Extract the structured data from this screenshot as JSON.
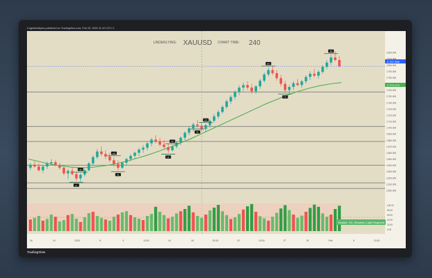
{
  "header": {
    "publisher": "CognitiveAlpha published on TradingView.com, Feb 02, 2025 21:42 UTC+1"
  },
  "toolbar": {
    "badge": "USD"
  },
  "footer": {
    "brand": "TradingView"
  },
  "chart_data": {
    "type": "candlestick",
    "underlying_label": "UNDERLYING:",
    "symbol": "XAUUSD",
    "chart_time_label": "CHART TIME:",
    "timeframe": "240",
    "ylim": [
      2590,
      2830
    ],
    "price_ticks": [
      "2,820.000",
      "2,810.000",
      "2,800.000",
      "2,790.000",
      "2,780.000",
      "2,770.000",
      "2,760.000",
      "2,750.000",
      "2,740.000",
      "2,730.000",
      "2,720.000",
      "2,710.000",
      "2,700.000",
      "2,690.000",
      "2,680.000",
      "2,670.000",
      "2,660.000",
      "2,650.000",
      "2,640.000",
      "2,630.000",
      "2,620.000",
      "2,610.000",
      "2,600.000"
    ],
    "last_price_label": "2,797.985",
    "ma_price_label": "2,772.373",
    "x_ticks": [
      "16",
      "19",
      "2025",
      "6",
      "9",
      "13:00",
      "14",
      "16",
      "20:00",
      "22",
      "13:00",
      "27",
      "30",
      "Feb",
      "5",
      "13:00"
    ],
    "horizontal_levels": [
      2757,
      2702,
      2678,
      2640,
      2612,
      2603
    ],
    "candles": [
      [
        2636,
        2644,
        2632,
        2641
      ],
      [
        2641,
        2647,
        2636,
        2638
      ],
      [
        2638,
        2643,
        2630,
        2632
      ],
      [
        2632,
        2640,
        2628,
        2638
      ],
      [
        2638,
        2646,
        2634,
        2643
      ],
      [
        2643,
        2650,
        2640,
        2645
      ],
      [
        2645,
        2648,
        2638,
        2640
      ],
      [
        2640,
        2644,
        2633,
        2636
      ],
      [
        2636,
        2640,
        2624,
        2627
      ],
      [
        2627,
        2634,
        2618,
        2631
      ],
      [
        2631,
        2636,
        2624,
        2626
      ],
      [
        2626,
        2630,
        2615,
        2619
      ],
      [
        2619,
        2627,
        2614,
        2625
      ],
      [
        2625,
        2634,
        2622,
        2632
      ],
      [
        2632,
        2645,
        2630,
        2643
      ],
      [
        2643,
        2656,
        2640,
        2653
      ],
      [
        2653,
        2666,
        2650,
        2662
      ],
      [
        2662,
        2670,
        2655,
        2658
      ],
      [
        2658,
        2664,
        2650,
        2654
      ],
      [
        2654,
        2660,
        2645,
        2648
      ],
      [
        2648,
        2653,
        2638,
        2642
      ],
      [
        2642,
        2648,
        2632,
        2636
      ],
      [
        2636,
        2646,
        2634,
        2644
      ],
      [
        2644,
        2652,
        2640,
        2650
      ],
      [
        2650,
        2658,
        2646,
        2655
      ],
      [
        2655,
        2662,
        2650,
        2660
      ],
      [
        2660,
        2668,
        2655,
        2665
      ],
      [
        2665,
        2672,
        2660,
        2668
      ],
      [
        2668,
        2678,
        2664,
        2675
      ],
      [
        2675,
        2684,
        2670,
        2681
      ],
      [
        2681,
        2688,
        2675,
        2678
      ],
      [
        2678,
        2684,
        2670,
        2673
      ],
      [
        2673,
        2680,
        2666,
        2669
      ],
      [
        2669,
        2674,
        2660,
        2664
      ],
      [
        2664,
        2672,
        2662,
        2670
      ],
      [
        2670,
        2678,
        2667,
        2676
      ],
      [
        2676,
        2686,
        2672,
        2684
      ],
      [
        2684,
        2694,
        2680,
        2692
      ],
      [
        2692,
        2702,
        2688,
        2699
      ],
      [
        2699,
        2708,
        2694,
        2705
      ],
      [
        2705,
        2712,
        2700,
        2703
      ],
      [
        2703,
        2708,
        2694,
        2698
      ],
      [
        2698,
        2706,
        2694,
        2704
      ],
      [
        2704,
        2714,
        2700,
        2711
      ],
      [
        2711,
        2722,
        2708,
        2718
      ],
      [
        2718,
        2728,
        2714,
        2725
      ],
      [
        2725,
        2736,
        2722,
        2733
      ],
      [
        2733,
        2745,
        2730,
        2742
      ],
      [
        2742,
        2752,
        2738,
        2749
      ],
      [
        2749,
        2760,
        2745,
        2757
      ],
      [
        2757,
        2768,
        2752,
        2764
      ],
      [
        2764,
        2772,
        2758,
        2768
      ],
      [
        2768,
        2774,
        2760,
        2764
      ],
      [
        2764,
        2770,
        2754,
        2758
      ],
      [
        2758,
        2768,
        2754,
        2766
      ],
      [
        2766,
        2778,
        2762,
        2775
      ],
      [
        2775,
        2788,
        2772,
        2785
      ],
      [
        2785,
        2796,
        2782,
        2792
      ],
      [
        2792,
        2798,
        2784,
        2787
      ],
      [
        2787,
        2792,
        2775,
        2779
      ],
      [
        2779,
        2784,
        2766,
        2770
      ],
      [
        2770,
        2775,
        2756,
        2760
      ],
      [
        2760,
        2768,
        2754,
        2765
      ],
      [
        2765,
        2774,
        2760,
        2771
      ],
      [
        2771,
        2778,
        2766,
        2768
      ],
      [
        2768,
        2776,
        2764,
        2774
      ],
      [
        2774,
        2784,
        2770,
        2781
      ],
      [
        2781,
        2790,
        2776,
        2786
      ],
      [
        2786,
        2794,
        2780,
        2783
      ],
      [
        2783,
        2792,
        2778,
        2789
      ],
      [
        2789,
        2800,
        2786,
        2797
      ],
      [
        2797,
        2808,
        2793,
        2804
      ],
      [
        2804,
        2816,
        2800,
        2812
      ],
      [
        2812,
        2822,
        2806,
        2808
      ],
      [
        2808,
        2814,
        2796,
        2798
      ]
    ],
    "ma": [
      2650,
      2646,
      2642,
      2639,
      2637,
      2636,
      2637,
      2639,
      2642,
      2646,
      2651,
      2656,
      2662,
      2668,
      2675,
      2682,
      2690,
      2698,
      2706,
      2714,
      2722,
      2730,
      2738,
      2745,
      2752,
      2758,
      2763,
      2767,
      2770,
      2772
    ],
    "markers": [
      {
        "t": "high",
        "i": 12,
        "label": "HH"
      },
      {
        "t": "low",
        "i": 11,
        "label": "LL"
      },
      {
        "t": "high",
        "i": 20,
        "label": "HH"
      },
      {
        "t": "low",
        "i": 21,
        "label": "HL"
      },
      {
        "t": "high",
        "i": 34,
        "label": "LH"
      },
      {
        "t": "low",
        "i": 33,
        "label": "HL"
      },
      {
        "t": "high",
        "i": 42,
        "label": "HH"
      },
      {
        "t": "low",
        "i": 40,
        "label": "HL"
      },
      {
        "t": "high",
        "i": 57,
        "label": "HH"
      },
      {
        "t": "low",
        "i": 61,
        "label": "HL"
      },
      {
        "t": "high",
        "i": 72,
        "label": "HH"
      }
    ],
    "oscillator": {
      "label": "Scalper: 15 | Shadow | Light Segment",
      "scale_ticks": [
        "100.00",
        "80.00",
        "60.00",
        "40.00",
        "20.00",
        "0.00"
      ],
      "values": [
        42,
        48,
        55,
        38,
        44,
        60,
        52,
        35,
        40,
        58,
        62,
        45,
        33,
        50,
        65,
        70,
        55,
        48,
        42,
        38,
        52,
        60,
        68,
        72,
        58,
        50,
        45,
        40,
        55,
        62,
        88,
        70,
        58,
        46,
        52,
        64,
        72,
        80,
        92,
        68,
        55,
        48,
        60,
        75,
        85,
        95,
        72,
        58,
        44,
        50,
        62,
        78,
        90,
        98,
        70,
        54,
        46,
        38,
        52,
        66,
        82,
        94,
        76,
        60,
        48,
        56,
        70,
        84,
        96,
        88,
        64,
        52,
        60,
        80,
        92
      ]
    }
  }
}
